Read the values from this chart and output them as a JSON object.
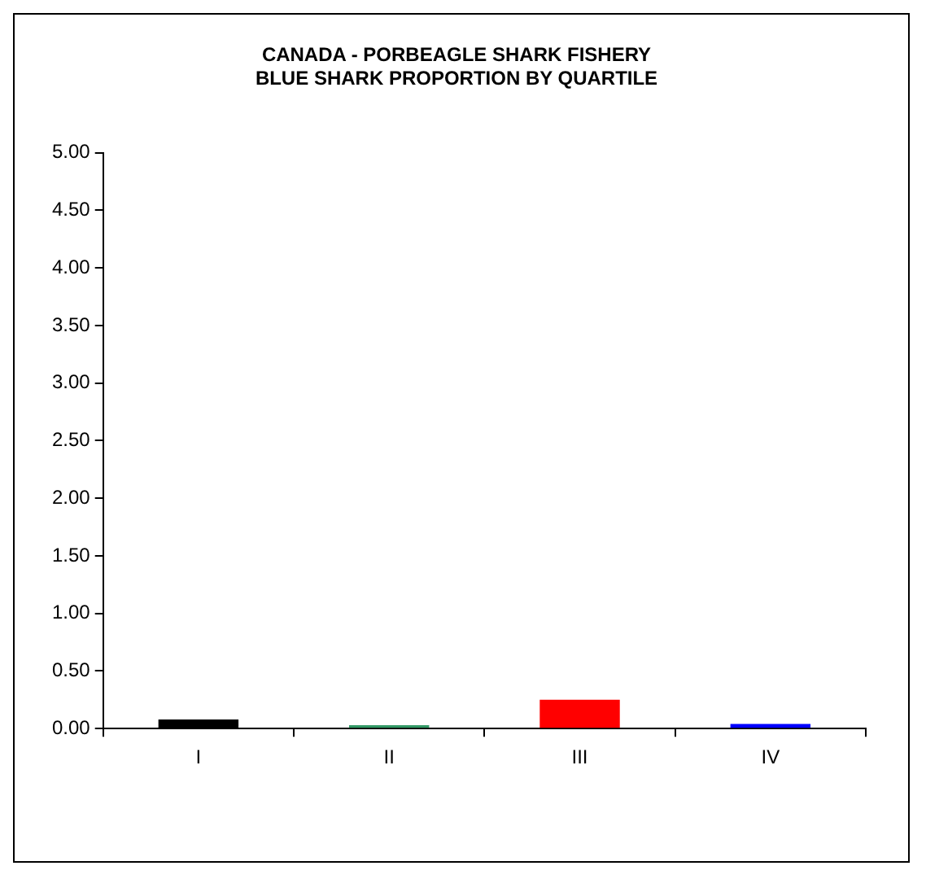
{
  "chart_data": {
    "type": "bar",
    "title": "CANADA - PORBEAGLE SHARK FISHERY\nBLUE SHARK PROPORTION BY QUARTILE",
    "categories": [
      "I",
      "II",
      "III",
      "IV"
    ],
    "values": [
      0.08,
      0.03,
      0.25,
      0.04
    ],
    "colors": [
      "#000000",
      "#339966",
      "#ff0000",
      "#0000ff"
    ],
    "ylim": [
      0,
      5
    ],
    "yticks": [
      {
        "value": 0,
        "label": "0.00"
      },
      {
        "value": 0.5,
        "label": "0.50"
      },
      {
        "value": 1,
        "label": "1.00"
      },
      {
        "value": 1.5,
        "label": "1.50"
      },
      {
        "value": 2,
        "label": "2.00"
      },
      {
        "value": 2.5,
        "label": "2.50"
      },
      {
        "value": 3,
        "label": "3.00"
      },
      {
        "value": 3.5,
        "label": "3.50"
      },
      {
        "value": 4,
        "label": "4.00"
      },
      {
        "value": 4.5,
        "label": "4.50"
      },
      {
        "value": 5,
        "label": "5.00"
      }
    ],
    "grid": false,
    "legend": false
  }
}
